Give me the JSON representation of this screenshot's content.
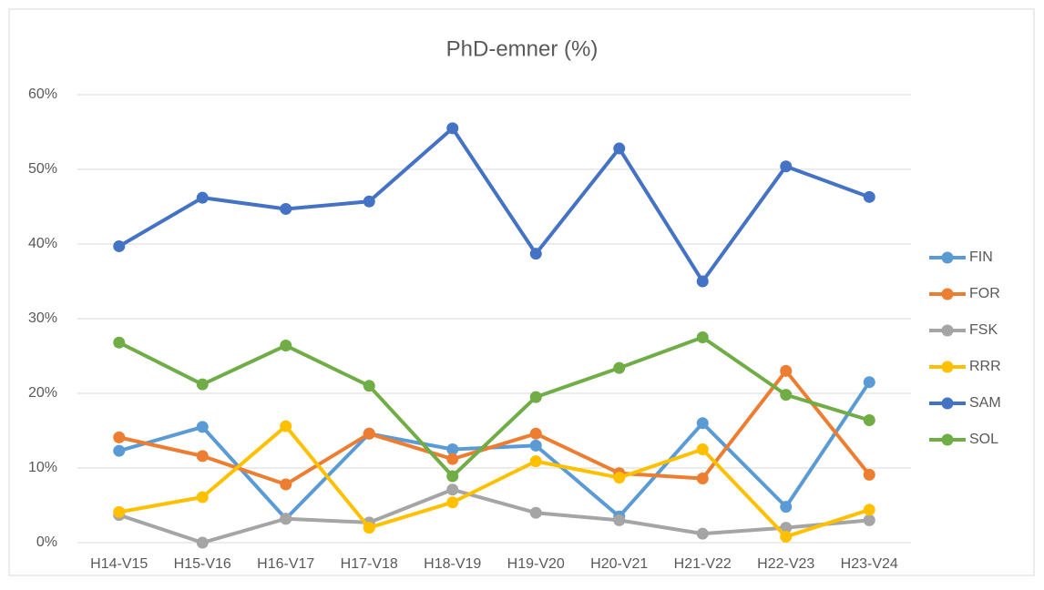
{
  "chart_data": {
    "type": "line",
    "title": "PhD-emner (%)",
    "categories": [
      "H14-V15",
      "H15-V16",
      "H16-V17",
      "H17-V18",
      "H18-V19",
      "H19-V20",
      "H20-V21",
      "H21-V22",
      "H22-V23",
      "H23-V24"
    ],
    "series": [
      {
        "name": "FIN",
        "color": "#5b9bd5",
        "values": [
          12.3,
          15.5,
          3.2,
          14.6,
          12.5,
          13.0,
          3.5,
          16.0,
          4.8,
          21.5
        ]
      },
      {
        "name": "FOR",
        "color": "#ed7d31",
        "values": [
          14.1,
          11.6,
          7.8,
          14.6,
          11.2,
          14.6,
          9.3,
          8.6,
          23.0,
          9.1
        ]
      },
      {
        "name": "FSK",
        "color": "#a5a5a5",
        "values": [
          3.7,
          0,
          3.2,
          2.7,
          7.1,
          4.0,
          3.0,
          1.2,
          2.0,
          3.0
        ]
      },
      {
        "name": "RRR",
        "color": "#ffc000",
        "values": [
          4.1,
          6.1,
          15.6,
          2.0,
          5.4,
          10.9,
          8.7,
          12.5,
          0.8,
          4.4
        ]
      },
      {
        "name": "SAM",
        "color": "#4472c4",
        "values": [
          39.7,
          46.2,
          44.7,
          45.7,
          55.5,
          38.7,
          52.8,
          35.0,
          50.4,
          46.3
        ]
      },
      {
        "name": "SOL",
        "color": "#70ad47",
        "values": [
          26.8,
          21.2,
          26.4,
          21.0,
          8.9,
          19.5,
          23.4,
          27.5,
          19.8,
          16.4
        ]
      }
    ],
    "ylim": [
      0,
      60
    ],
    "yticks": [
      {
        "value": 0,
        "label": "0%"
      },
      {
        "value": 10,
        "label": "10%"
      },
      {
        "value": 20,
        "label": "20%"
      },
      {
        "value": 30,
        "label": "30%"
      },
      {
        "value": 40,
        "label": "40%"
      },
      {
        "value": 50,
        "label": "50%"
      },
      {
        "value": 60,
        "label": "60%"
      }
    ],
    "grid": true,
    "legend": "right"
  }
}
